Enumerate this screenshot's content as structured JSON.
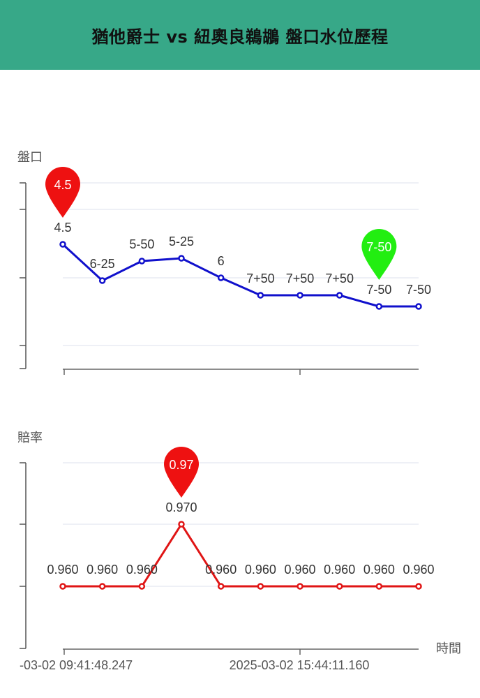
{
  "header": {
    "title": "猶他爵士 vs 紐奧良鵜鶘 盤口水位歷程"
  },
  "colors": {
    "header_bg": "#37a888",
    "handicap_line": "#1010cc",
    "odds_line": "#e01515",
    "pin_max": "#ee1111",
    "pin_min": "#22ee11"
  },
  "chart_data": [
    {
      "type": "line",
      "ylabel": "盤口",
      "xlabel": "",
      "y_scale_note": "handicap levels",
      "series": [
        {
          "values": [
            4.5,
            6.25,
            5.5,
            5.25,
            6,
            7.5,
            7.5,
            7.5,
            7.75,
            7.75
          ],
          "labels": [
            "4.5",
            "6-25",
            "5-50",
            "5-25",
            "6",
            "7+50",
            "7+50",
            "7+50",
            "7-50",
            "7-50"
          ]
        }
      ],
      "markers": [
        {
          "kind": "max",
          "index": 0,
          "text": "4.5"
        },
        {
          "kind": "min",
          "index": 8,
          "text": "7-50"
        }
      ],
      "grid": true
    },
    {
      "type": "line",
      "ylabel": "賠率",
      "xlabel": "時間",
      "series": [
        {
          "values": [
            0.96,
            0.96,
            0.96,
            0.97,
            0.96,
            0.96,
            0.96,
            0.96,
            0.96,
            0.96
          ],
          "labels": [
            "0.960",
            "0.960",
            "0.960",
            "0.970",
            "0.960",
            "0.960",
            "0.960",
            "0.960",
            "0.960",
            "0.960"
          ]
        }
      ],
      "markers": [
        {
          "kind": "max",
          "index": 3,
          "text": "0.97"
        }
      ],
      "x_tick_labels": [
        "-03-02 09:41:48.247",
        "2025-03-02 15:44:11.160"
      ],
      "grid": true
    }
  ]
}
